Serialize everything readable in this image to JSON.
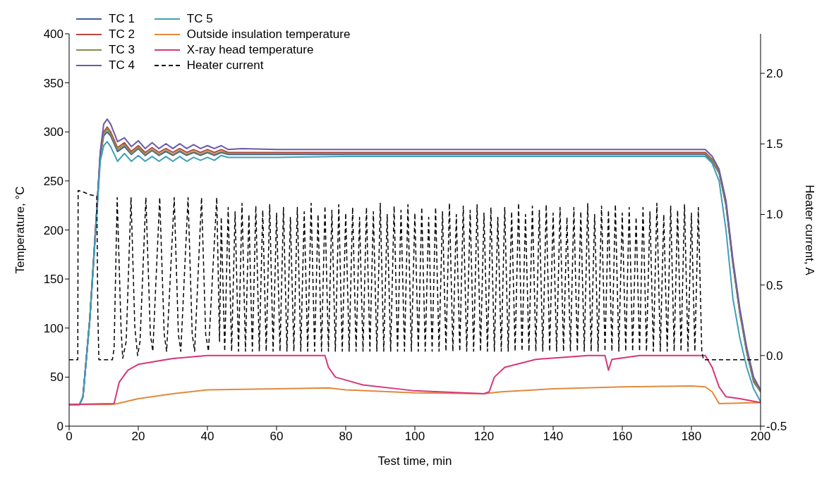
{
  "chart_data": {
    "type": "line",
    "xlabel": "Test time, min",
    "ylabel": "Temperature, °C",
    "y2label": "Heater current, A",
    "xlim": [
      0,
      200
    ],
    "xticks": [
      0,
      20,
      40,
      60,
      80,
      100,
      120,
      140,
      160,
      180,
      200
    ],
    "ylim": [
      0,
      400
    ],
    "yticks": [
      0,
      50,
      100,
      150,
      200,
      250,
      300,
      350,
      400
    ],
    "y2lim": [
      -0.5,
      2.28
    ],
    "y2ticks": [
      {
        "value": -0.5,
        "label": "-0.5"
      },
      {
        "value": 0,
        "label": "0.0"
      },
      0.5,
      {
        "value": 1,
        "label": "1.0"
      },
      1.5,
      {
        "value": 2,
        "label": "2.0"
      }
    ],
    "legend": "top left",
    "series": [
      {
        "name": "TC 1",
        "color": "#3a5f9e",
        "x": [
          0,
          3,
          4,
          6,
          8,
          9,
          10,
          11,
          12,
          14,
          16,
          18,
          20,
          22,
          24,
          26,
          28,
          30,
          32,
          34,
          36,
          38,
          40,
          42,
          44,
          46,
          50,
          60,
          80,
          100,
          140,
          180,
          184,
          186,
          188,
          190,
          192,
          194,
          196,
          198,
          200
        ],
        "values": [
          22,
          22,
          30,
          110,
          220,
          275,
          296,
          300,
          296,
          280,
          285,
          277,
          283,
          276,
          281,
          276,
          280,
          276,
          280,
          276,
          279,
          276,
          279,
          276,
          279,
          277,
          277,
          277,
          277,
          277,
          277,
          277,
          277,
          270,
          258,
          225,
          165,
          115,
          75,
          45,
          35
        ]
      },
      {
        "name": "TC 2",
        "color": "#b5473c",
        "x": [
          0,
          3,
          4,
          6,
          8,
          9,
          10,
          11,
          12,
          14,
          16,
          18,
          20,
          22,
          24,
          26,
          28,
          30,
          32,
          34,
          36,
          38,
          40,
          42,
          44,
          46,
          50,
          60,
          80,
          100,
          140,
          180,
          184,
          186,
          188,
          190,
          192,
          194,
          196,
          198,
          200
        ],
        "values": [
          22,
          22,
          30,
          110,
          220,
          277,
          300,
          305,
          300,
          284,
          289,
          280,
          286,
          279,
          284,
          279,
          283,
          279,
          283,
          279,
          282,
          279,
          282,
          279,
          282,
          279,
          279,
          279,
          279,
          279,
          279,
          279,
          279,
          272,
          260,
          227,
          167,
          117,
          77,
          47,
          36
        ]
      },
      {
        "name": "TC 3",
        "color": "#8c8a4a",
        "x": [
          0,
          3,
          4,
          6,
          8,
          9,
          10,
          11,
          12,
          14,
          16,
          18,
          20,
          22,
          24,
          26,
          28,
          30,
          32,
          34,
          36,
          38,
          40,
          42,
          44,
          46,
          50,
          60,
          80,
          100,
          140,
          180,
          184,
          186,
          188,
          190,
          192,
          194,
          196,
          198,
          200
        ],
        "values": [
          22,
          22,
          30,
          110,
          220,
          276,
          298,
          303,
          298,
          282,
          287,
          278,
          284,
          277,
          282,
          277,
          281,
          277,
          281,
          277,
          280,
          277,
          280,
          277,
          280,
          278,
          278,
          278,
          278,
          278,
          278,
          278,
          278,
          271,
          259,
          226,
          166,
          116,
          76,
          46,
          35
        ]
      },
      {
        "name": "TC 4",
        "color": "#6a5aa8",
        "x": [
          0,
          3,
          4,
          6,
          8,
          9,
          10,
          11,
          12,
          14,
          16,
          18,
          20,
          22,
          24,
          26,
          28,
          30,
          32,
          34,
          36,
          38,
          40,
          42,
          44,
          46,
          50,
          60,
          80,
          100,
          140,
          180,
          184,
          186,
          188,
          190,
          192,
          194,
          196,
          198,
          200
        ],
        "values": [
          22,
          22,
          30,
          110,
          220,
          280,
          308,
          313,
          308,
          290,
          294,
          285,
          291,
          283,
          289,
          283,
          288,
          283,
          288,
          283,
          287,
          283,
          286,
          283,
          286,
          282,
          283,
          282,
          282,
          282,
          282,
          282,
          282,
          275,
          262,
          230,
          170,
          120,
          80,
          50,
          37
        ]
      },
      {
        "name": "TC 5",
        "color": "#3fa0b8",
        "x": [
          0,
          3,
          4,
          6,
          8,
          9,
          10,
          11,
          12,
          14,
          16,
          18,
          20,
          22,
          24,
          26,
          28,
          30,
          32,
          34,
          36,
          38,
          40,
          42,
          44,
          46,
          50,
          60,
          80,
          100,
          140,
          180,
          184,
          186,
          188,
          190,
          192,
          194,
          196,
          198,
          200
        ],
        "values": [
          22,
          22,
          30,
          110,
          215,
          270,
          286,
          290,
          285,
          270,
          278,
          270,
          276,
          270,
          275,
          270,
          275,
          270,
          275,
          270,
          274,
          271,
          274,
          271,
          276,
          274,
          274,
          274,
          275,
          275,
          275,
          275,
          275,
          268,
          250,
          200,
          130,
          90,
          60,
          38,
          25
        ]
      },
      {
        "name": "Outside insulation temperature",
        "color": "#e08a3c",
        "x": [
          0,
          12,
          14,
          20,
          30,
          40,
          60,
          75,
          80,
          100,
          120,
          125,
          140,
          160,
          180,
          184,
          186,
          188,
          200
        ],
        "values": [
          22,
          22,
          23,
          28,
          33,
          37,
          38,
          39,
          37,
          34,
          33,
          35,
          38,
          40,
          41,
          40,
          35,
          23,
          24
        ]
      },
      {
        "name": "X-ray head temperature",
        "color": "#d6377a",
        "x": [
          0,
          13,
          14.5,
          17,
          20,
          30,
          40,
          74,
          75,
          77,
          85,
          100,
          120,
          121.5,
          123,
          126,
          135,
          150,
          155,
          156,
          157,
          165,
          184,
          186,
          188,
          190,
          194,
          200
        ],
        "values": [
          22,
          23,
          45,
          57,
          63,
          69,
          72,
          72,
          60,
          50,
          42,
          36,
          33,
          35,
          50,
          60,
          68,
          72,
          72,
          57,
          68,
          72,
          72,
          60,
          40,
          30,
          28,
          24
        ]
      },
      {
        "name": "Heater current",
        "color": "#000000",
        "axis": "y2",
        "line_style": "dashed",
        "x": [
          0,
          2.5,
          2.6,
          4,
          6,
          8,
          8.3,
          8.6,
          12.5,
          13,
          13.9,
          15,
          15.5,
          16.5,
          17.9,
          19,
          19.8,
          20.5,
          22.2,
          23.5,
          24.2,
          26.2,
          27.5,
          28.2,
          30.4,
          31.6,
          32.3,
          34.4,
          35.6,
          36.3,
          38.3,
          39.5,
          40.3,
          42.7,
          43.5,
          44,
          45,
          46,
          47,
          48,
          49,
          50,
          51,
          52,
          53,
          54,
          55,
          56,
          57,
          58,
          59,
          60,
          61,
          62,
          63,
          64,
          65,
          66,
          67,
          68,
          69,
          70,
          71,
          72,
          73,
          74,
          75,
          76,
          77,
          78,
          79,
          80,
          81,
          82,
          83,
          84,
          85,
          86,
          87,
          88,
          89,
          90,
          91,
          92,
          93,
          94,
          95,
          96,
          97,
          98,
          99,
          100,
          101,
          102,
          103,
          104,
          105,
          106,
          107,
          108,
          109,
          110,
          111,
          112,
          113,
          114,
          115,
          116,
          117,
          118,
          119,
          120,
          121,
          122,
          123,
          124,
          125,
          126,
          127,
          128,
          129,
          130,
          131,
          132,
          133,
          134,
          135,
          136,
          137,
          138,
          139,
          140,
          141,
          142,
          143,
          144,
          145,
          146,
          147,
          148,
          149,
          150,
          151,
          152,
          153,
          154,
          155,
          156,
          157,
          158,
          159,
          160,
          161,
          162,
          163,
          164,
          165,
          166,
          167,
          168,
          169,
          170,
          171,
          172,
          173,
          174,
          175,
          176,
          177,
          178,
          179,
          180,
          181,
          182,
          183,
          183.5,
          200
        ],
        "values": [
          -0.03,
          -0.03,
          1.17,
          1.16,
          1.14,
          1.13,
          0.3,
          -0.03,
          -0.03,
          0.05,
          1.12,
          0.2,
          -0.02,
          0.1,
          1.12,
          0.2,
          0.0,
          0.1,
          1.12,
          0.15,
          0.03,
          1.12,
          0.15,
          0.03,
          1.12,
          0.15,
          0.03,
          1.12,
          0.15,
          0.03,
          1.12,
          0.15,
          0.03,
          1.12,
          0.1,
          0.98,
          0.03,
          1.05,
          0.03,
          1.02,
          0.03,
          1.08,
          0.03,
          1.0,
          0.03,
          1.06,
          0.03,
          1.03,
          0.03,
          1.07,
          0.03,
          1.01,
          0.03,
          1.05,
          0.03,
          0.98,
          0.03,
          1.05,
          0.03,
          1.02,
          0.03,
          1.08,
          0.03,
          1.0,
          0.03,
          1.06,
          0.03,
          1.03,
          0.03,
          1.07,
          0.03,
          1.01,
          0.03,
          1.05,
          0.03,
          0.98,
          0.03,
          1.05,
          0.03,
          1.02,
          0.03,
          1.08,
          0.03,
          1.0,
          0.03,
          1.06,
          0.03,
          1.03,
          0.03,
          1.07,
          0.03,
          1.01,
          0.03,
          1.05,
          0.03,
          0.98,
          0.03,
          1.05,
          0.03,
          1.02,
          0.03,
          1.08,
          0.03,
          1.0,
          0.03,
          1.06,
          0.03,
          1.03,
          0.03,
          1.07,
          0.03,
          1.01,
          0.03,
          1.05,
          0.03,
          0.98,
          0.03,
          1.05,
          0.03,
          1.02,
          0.03,
          1.08,
          0.03,
          1.0,
          0.03,
          1.06,
          0.03,
          1.03,
          0.03,
          1.07,
          0.03,
          1.01,
          0.03,
          1.05,
          0.03,
          0.98,
          0.03,
          1.05,
          0.03,
          1.02,
          0.03,
          1.08,
          0.03,
          1.0,
          0.03,
          1.06,
          0.03,
          1.03,
          0.03,
          1.07,
          0.03,
          1.01,
          0.03,
          1.05,
          0.03,
          0.98,
          0.03,
          1.05,
          0.03,
          1.02,
          0.03,
          1.08,
          0.03,
          1.0,
          0.03,
          1.06,
          0.03,
          1.03,
          0.03,
          1.07,
          0.03,
          1.01,
          0.03,
          1.05,
          0.03,
          -0.03,
          -0.03
        ]
      }
    ]
  }
}
